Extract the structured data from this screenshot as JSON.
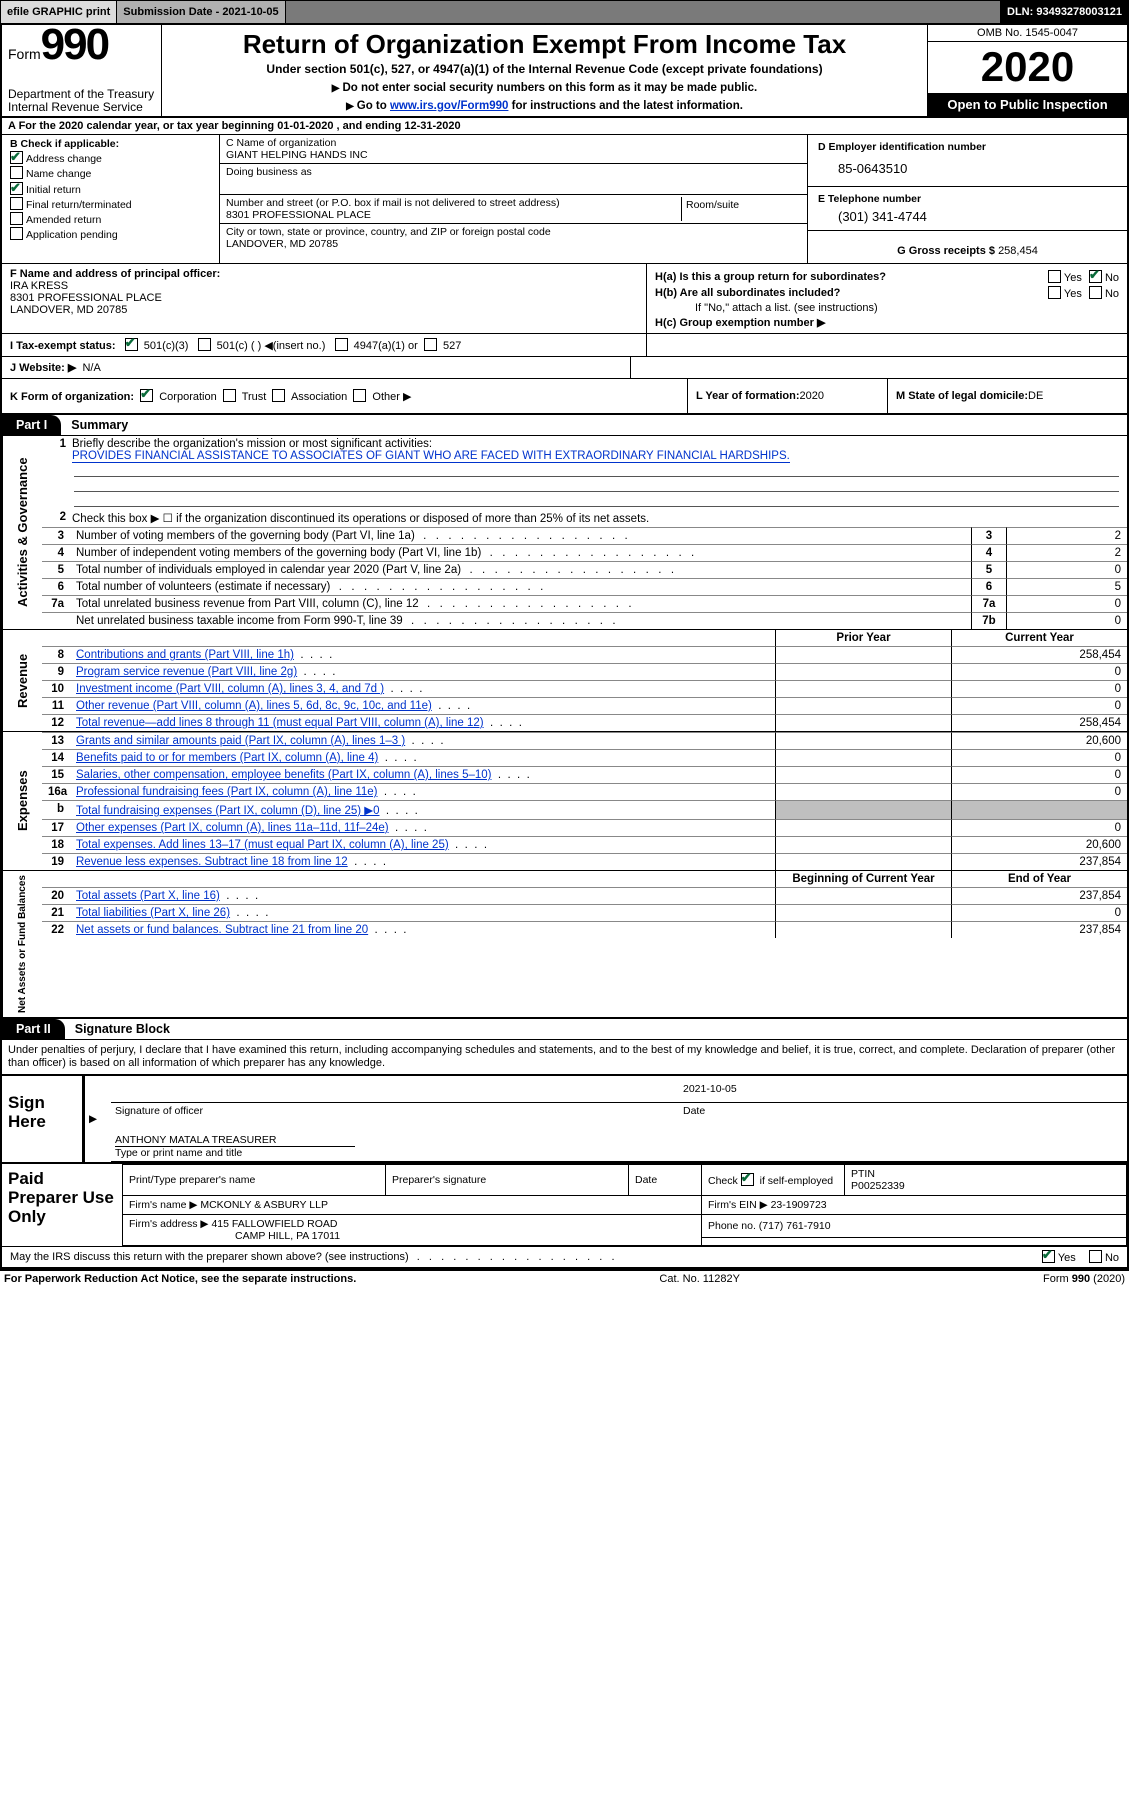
{
  "topbar": {
    "efile": "efile GRAPHIC print",
    "subDateLabel": "Submission Date - 2021-10-05",
    "dln": "DLN: 93493278003121"
  },
  "header": {
    "formWord": "Form",
    "formNum": "990",
    "agency1": "Department of the Treasury",
    "agency2": "Internal Revenue Service",
    "title": "Return of Organization Exempt From Income Tax",
    "sub": "Under section 501(c), 527, or 4947(a)(1) of the Internal Revenue Code (except private foundations)",
    "note1": "Do not enter social security numbers on this form as it may be made public.",
    "note2pre": "Go to ",
    "note2link": "www.irs.gov/Form990",
    "note2post": " for instructions and the latest information.",
    "omb": "OMB No. 1545-0047",
    "year": "2020",
    "open": "Open to Public Inspection"
  },
  "rowA": {
    "text": "A For the 2020 calendar year, or tax year beginning 01-01-2020     , and ending 12-31-2020"
  },
  "B": {
    "label": "B Check if applicable:",
    "addr": "Address change",
    "name": "Name change",
    "init": "Initial return",
    "final": "Final return/terminated",
    "amend": "Amended return",
    "app": "Application pending"
  },
  "C": {
    "nameLbl": "C Name of organization",
    "name": "GIANT HELPING HANDS INC",
    "dbaLbl": "Doing business as",
    "dba": "",
    "addrLbl": "Number and street (or P.O. box if mail is not delivered to street address)",
    "roomLbl": "Room/suite",
    "addr": "8301 PROFESSIONAL PLACE",
    "cityLbl": "City or town, state or province, country, and ZIP or foreign postal code",
    "city": "LANDOVER, MD  20785"
  },
  "D": {
    "lbl": "D Employer identification number",
    "val": "85-0643510"
  },
  "E": {
    "lbl": "E Telephone number",
    "val": "(301) 341-4744"
  },
  "G": {
    "lbl": "G Gross receipts $ ",
    "val": "258,454"
  },
  "F": {
    "lbl": "F  Name and address of principal officer:",
    "name": "IRA KRESS",
    "addr": "8301 PROFESSIONAL PLACE",
    "city": "LANDOVER, MD  20785"
  },
  "H": {
    "a": "H(a)  Is this a group return for subordinates?",
    "b": "H(b)  Are all subordinates included?",
    "bNote": "If \"No,\" attach a list. (see instructions)",
    "c": "H(c)  Group exemption number ▶"
  },
  "I": {
    "lbl": "I    Tax-exempt status:",
    "o1": "501(c)(3)",
    "o2": "501(c) (  ) ◀(insert no.)",
    "o3": "4947(a)(1) or",
    "o4": "527"
  },
  "J": {
    "lbl": "J    Website: ▶",
    "val": "N/A"
  },
  "K": {
    "lbl": "K Form of organization:",
    "o1": "Corporation",
    "o2": "Trust",
    "o3": "Association",
    "o4": "Other ▶"
  },
  "L": {
    "lbl": "L Year of formation: ",
    "val": "2020"
  },
  "M": {
    "lbl": "M State of legal domicile: ",
    "val": "DE"
  },
  "part1": {
    "tab": "Part I",
    "title": "Summary",
    "l1lbl": "Briefly describe the organization's mission or most significant activities:",
    "l1val": "PROVIDES FINANCIAL ASSISTANCE TO ASSOCIATES OF GIANT WHO ARE FACED WITH EXTRAORDINARY FINANCIAL HARDSHIPS.",
    "l2": "Check this box ▶ ☐  if the organization discontinued its operations or disposed of more than 25% of its net assets.",
    "rows37": [
      {
        "n": "3",
        "t": "Number of voting members of the governing body (Part VI, line 1a)",
        "c": "3",
        "v": "2"
      },
      {
        "n": "4",
        "t": "Number of independent voting members of the governing body (Part VI, line 1b)",
        "c": "4",
        "v": "2"
      },
      {
        "n": "5",
        "t": "Total number of individuals employed in calendar year 2020 (Part V, line 2a)",
        "c": "5",
        "v": "0"
      },
      {
        "n": "6",
        "t": "Total number of volunteers (estimate if necessary)",
        "c": "6",
        "v": "5"
      },
      {
        "n": "7a",
        "t": "Total unrelated business revenue from Part VIII, column (C), line 12",
        "c": "7a",
        "v": "0"
      },
      {
        "n": "",
        "t": "Net unrelated business taxable income from Form 990-T, line 39",
        "c": "7b",
        "v": "0"
      }
    ],
    "colHdrPrior": "Prior Year",
    "colHdrCurr": "Current Year",
    "revenue": [
      {
        "n": "8",
        "t": "Contributions and grants (Part VIII, line 1h)",
        "p": "",
        "c": "258,454"
      },
      {
        "n": "9",
        "t": "Program service revenue (Part VIII, line 2g)",
        "p": "",
        "c": "0"
      },
      {
        "n": "10",
        "t": "Investment income (Part VIII, column (A), lines 3, 4, and 7d )",
        "p": "",
        "c": "0"
      },
      {
        "n": "11",
        "t": "Other revenue (Part VIII, column (A), lines 5, 6d, 8c, 9c, 10c, and 11e)",
        "p": "",
        "c": "0"
      },
      {
        "n": "12",
        "t": "Total revenue—add lines 8 through 11 (must equal Part VIII, column (A), line 12)",
        "p": "",
        "c": "258,454"
      }
    ],
    "expenses": [
      {
        "n": "13",
        "t": "Grants and similar amounts paid (Part IX, column (A), lines 1–3 )",
        "p": "",
        "c": "20,600"
      },
      {
        "n": "14",
        "t": "Benefits paid to or for members (Part IX, column (A), line 4)",
        "p": "",
        "c": "0"
      },
      {
        "n": "15",
        "t": "Salaries, other compensation, employee benefits (Part IX, column (A), lines 5–10)",
        "p": "",
        "c": "0"
      },
      {
        "n": "16a",
        "t": "Professional fundraising fees (Part IX, column (A), line 11e)",
        "p": "",
        "c": "0"
      },
      {
        "n": "b",
        "t": "Total fundraising expenses (Part IX, column (D), line 25) ▶0",
        "p": "shade",
        "c": "shade"
      },
      {
        "n": "17",
        "t": "Other expenses (Part IX, column (A), lines 11a–11d, 11f–24e)",
        "p": "",
        "c": "0"
      },
      {
        "n": "18",
        "t": "Total expenses. Add lines 13–17 (must equal Part IX, column (A), line 25)",
        "p": "",
        "c": "20,600"
      },
      {
        "n": "19",
        "t": "Revenue less expenses. Subtract line 18 from line 12",
        "p": "",
        "c": "237,854"
      }
    ],
    "netHdr1": "Beginning of Current Year",
    "netHdr2": "End of Year",
    "net": [
      {
        "n": "20",
        "t": "Total assets (Part X, line 16)",
        "p": "",
        "c": "237,854"
      },
      {
        "n": "21",
        "t": "Total liabilities (Part X, line 26)",
        "p": "",
        "c": "0"
      },
      {
        "n": "22",
        "t": "Net assets or fund balances. Subtract line 21 from line 20",
        "p": "",
        "c": "237,854"
      }
    ]
  },
  "sideLabels": {
    "gov": "Activities & Governance",
    "rev": "Revenue",
    "exp": "Expenses",
    "net": "Net Assets or Fund Balances"
  },
  "part2": {
    "tab": "Part II",
    "title": "Signature Block",
    "decl": "Under penalties of perjury, I declare that I have examined this return, including accompanying schedules and statements, and to the best of my knowledge and belief, it is true, correct, and complete. Declaration of preparer (other than officer) is based on all information of which preparer has any knowledge."
  },
  "sign": {
    "here": "Sign Here",
    "sigLbl": "Signature of officer",
    "date": "2021-10-05",
    "dateLbl": "Date",
    "name": "ANTHONY MATALA  TREASURER",
    "nameLbl": "Type or print name and title"
  },
  "prep": {
    "lab": "Paid Preparer Use Only",
    "h1": "Print/Type preparer's name",
    "h2": "Preparer's signature",
    "h3": "Date",
    "h4pre": "Check ",
    "h4post": " if self-employed",
    "h5": "PTIN",
    "ptin": "P00252339",
    "firmLbl": "Firm's name    ▶ ",
    "firm": "MCKONLY & ASBURY LLP",
    "einLbl": "Firm's EIN ▶ ",
    "ein": "23-1909723",
    "addrLbl": "Firm's address ▶ ",
    "addr1": "415 FALLOWFIELD ROAD",
    "addr2": "CAMP HILL, PA  17011",
    "phoneLbl": "Phone no. ",
    "phone": "(717) 761-7910"
  },
  "discuss": {
    "q": "May the IRS discuss this return with the preparer shown above? (see instructions)",
    "yes": "Yes",
    "no": "No"
  },
  "footer": {
    "l": "For Paperwork Reduction Act Notice, see the separate instructions.",
    "c": "Cat. No. 11282Y",
    "r": "Form 990 (2020)"
  }
}
